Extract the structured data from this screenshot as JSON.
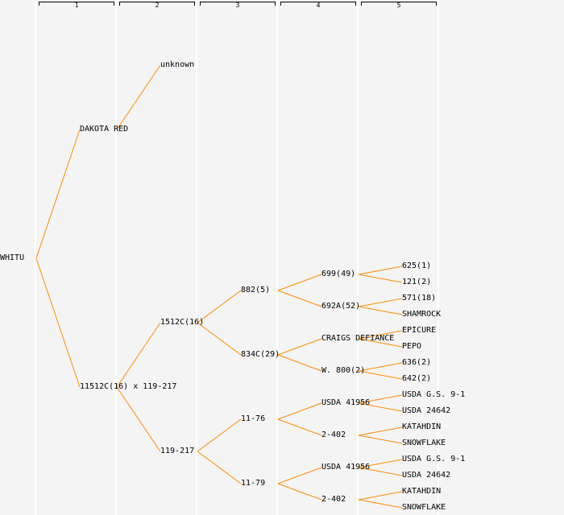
{
  "generations": [
    "1",
    "2",
    "3",
    "4",
    "5"
  ],
  "colors": {
    "line": "#ff8c00",
    "text": "#000000"
  },
  "tree": {
    "label": "WHITU",
    "children": [
      {
        "label": "DAKOTA RED",
        "children": [
          {
            "label": "unknown",
            "children": []
          },
          null
        ]
      },
      {
        "label": "11512C(16) x 119-217",
        "children": [
          {
            "label": "1512C(16)",
            "children": [
              {
                "label": "882(5)",
                "children": [
                  {
                    "label": "699(49)",
                    "children": [
                      {
                        "label": "625(1)"
                      },
                      {
                        "label": "121(2)"
                      }
                    ]
                  },
                  {
                    "label": "692A(52)",
                    "children": [
                      {
                        "label": "571(18)"
                      },
                      {
                        "label": "SHAMROCK"
                      }
                    ]
                  }
                ]
              },
              {
                "label": "834C(29)",
                "children": [
                  {
                    "label": "CRAIGS DEFIANCE",
                    "children": [
                      {
                        "label": "EPICURE"
                      },
                      {
                        "label": "PEPO"
                      }
                    ]
                  },
                  {
                    "label": "W. 800(2)",
                    "children": [
                      {
                        "label": "636(2)"
                      },
                      {
                        "label": "642(2)"
                      }
                    ]
                  }
                ]
              }
            ]
          },
          {
            "label": "119-217",
            "children": [
              {
                "label": "11-76",
                "children": [
                  {
                    "label": "USDA 41956",
                    "children": [
                      {
                        "label": "USDA G.S. 9-1"
                      },
                      {
                        "label": "USDA 24642"
                      }
                    ]
                  },
                  {
                    "label": "2-402",
                    "children": [
                      {
                        "label": "KATAHDIN"
                      },
                      {
                        "label": "SNOWFLAKE"
                      }
                    ]
                  }
                ]
              },
              {
                "label": "11-79",
                "children": [
                  {
                    "label": "USDA 41956",
                    "children": [
                      {
                        "label": "USDA G.S. 9-1"
                      },
                      {
                        "label": "USDA 24642"
                      }
                    ]
                  },
                  {
                    "label": "2-402",
                    "children": [
                      {
                        "label": "KATAHDIN"
                      },
                      {
                        "label": "SNOWFLAKE"
                      }
                    ]
                  }
                ]
              }
            ]
          }
        ]
      }
    ]
  }
}
